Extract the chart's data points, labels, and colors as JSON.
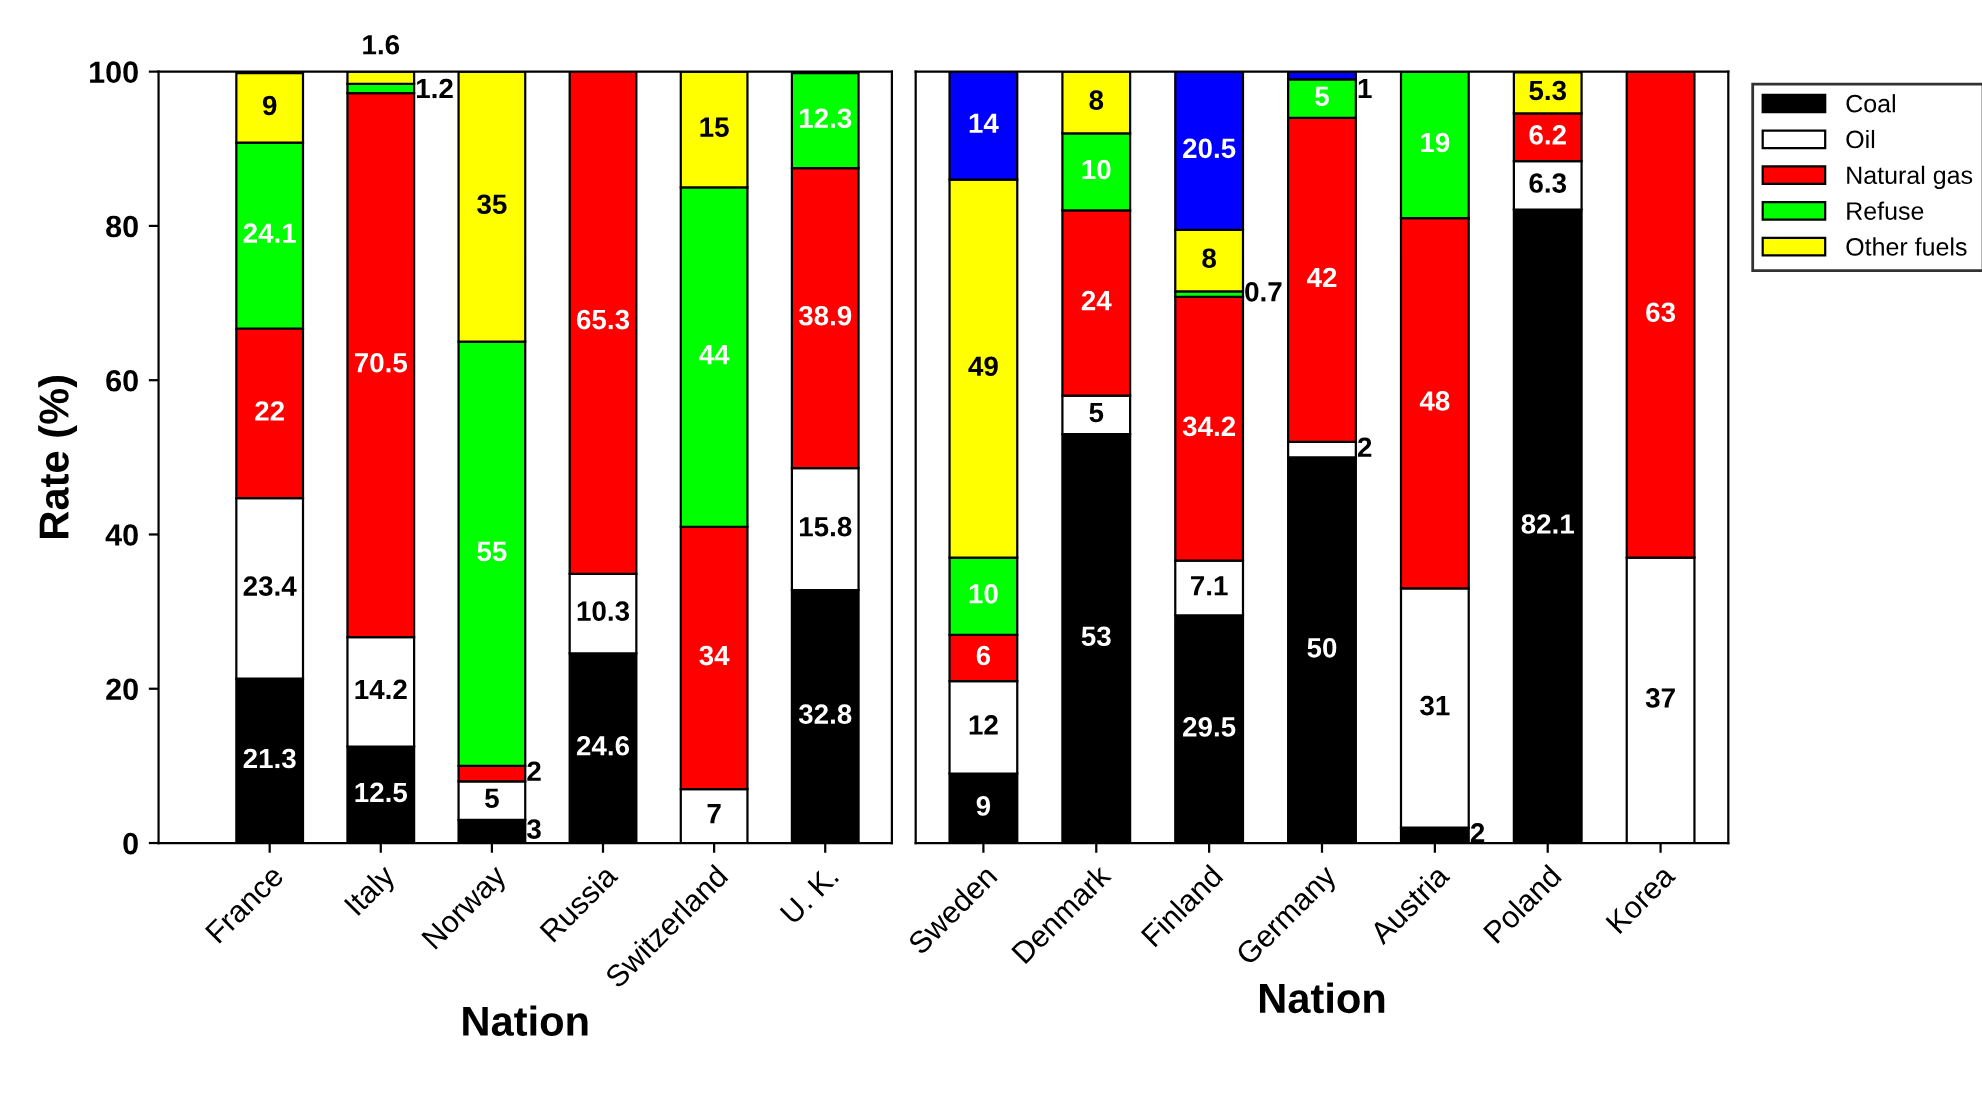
{
  "chart_data": [
    {
      "type": "bar",
      "stacked": true,
      "data_labels": true,
      "ylabel": "Rate (%)",
      "xlabel": "Nation",
      "ylim": [
        0,
        100
      ],
      "yticks": [
        0,
        20,
        40,
        60,
        80,
        100
      ],
      "grid": false,
      "legend": "right",
      "categories": [
        "France",
        "Italy",
        "Norway",
        "Russia",
        "Switzerland",
        "U. K."
      ],
      "series": [
        {
          "name": "Coal",
          "color": "#000000",
          "values": [
            21.3,
            12.5,
            3,
            24.6,
            null,
            32.8
          ]
        },
        {
          "name": "Oil",
          "color": "#ffffff",
          "values": [
            23.4,
            14.2,
            5,
            10.3,
            7,
            15.8
          ]
        },
        {
          "name": "Natural gas",
          "color": "#ff0000",
          "values": [
            22,
            70.5,
            2,
            65.3,
            34,
            38.9
          ]
        },
        {
          "name": "Refuse",
          "color": "#00ff00",
          "values": [
            24.1,
            1.2,
            55,
            null,
            44,
            12.3
          ]
        },
        {
          "name": "Other fuels",
          "color": "#ffff00",
          "values": [
            9,
            1.6,
            35,
            null,
            15,
            null
          ]
        }
      ]
    },
    {
      "type": "bar",
      "stacked": true,
      "data_labels": true,
      "xlabel": "Nation",
      "ylim": [
        0,
        100
      ],
      "tick_labels": "x",
      "grid": false,
      "categories": [
        "Sweden",
        "Denmark",
        "Finland",
        "Germany",
        "Austria",
        "Poland",
        "Korea"
      ],
      "series": [
        {
          "color": "#000000",
          "values": [
            9,
            53,
            29.5,
            50,
            2,
            82.1,
            null
          ]
        },
        {
          "color": "#ffffff",
          "values": [
            12,
            5,
            7.1,
            2,
            31,
            6.3,
            37
          ]
        },
        {
          "color": "#ff0000",
          "values": [
            6,
            24,
            34.2,
            42,
            48,
            6.2,
            63
          ]
        },
        {
          "color": "#00ff00",
          "values": [
            10,
            10,
            0.7,
            5,
            19,
            null,
            null
          ]
        },
        {
          "color": "#ffff00",
          "values": [
            49,
            8,
            8,
            null,
            null,
            5.3,
            null
          ]
        },
        {
          "color": "#0000ff",
          "values": [
            14,
            null,
            20.5,
            1,
            null,
            null,
            null
          ]
        }
      ]
    }
  ]
}
